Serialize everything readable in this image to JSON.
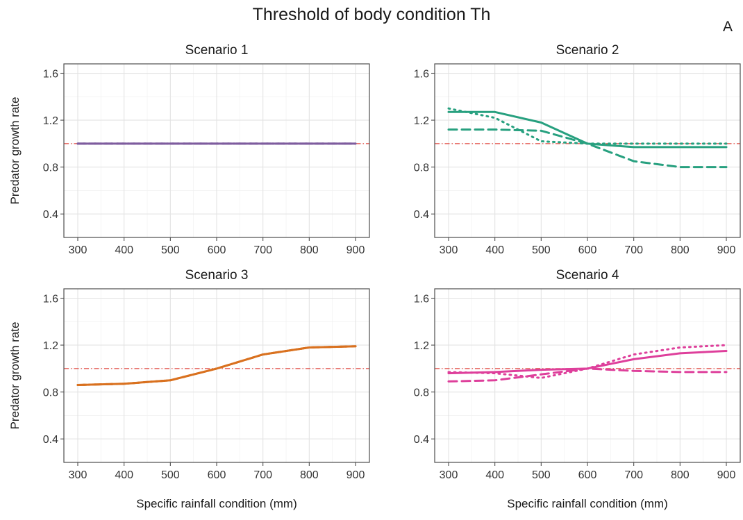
{
  "figure": {
    "title": "Threshold of body condition Th",
    "panel_tag": "A"
  },
  "chart_data": [
    {
      "type": "line",
      "title": "Scenario 1",
      "xlabel": "",
      "ylabel": "Predator growth rate",
      "xlim": [
        270,
        930
      ],
      "ylim": [
        0.2,
        1.68
      ],
      "xticks": [
        300,
        400,
        500,
        600,
        700,
        800,
        900
      ],
      "yticks": [
        0.4,
        0.8,
        1.2,
        1.6
      ],
      "reference_line": {
        "y": 1.0,
        "color": "#e0463e",
        "style": "dotdash"
      },
      "grid": true,
      "x": [
        300,
        400,
        500,
        600,
        700,
        800,
        900
      ],
      "series": [
        {
          "values": [
            1.0,
            1.0,
            1.0,
            1.0,
            1.0,
            1.0,
            1.0
          ],
          "color": "#7e5c9e",
          "style": "solid"
        },
        {
          "values": [
            1.0,
            1.0,
            1.0,
            1.0,
            1.0,
            1.0,
            1.0
          ],
          "color": "#7e5c9e",
          "style": "dashed"
        },
        {
          "values": [
            1.0,
            1.0,
            1.0,
            1.0,
            1.0,
            1.0,
            1.0
          ],
          "color": "#7e5c9e",
          "style": "dotted"
        }
      ]
    },
    {
      "type": "line",
      "title": "Scenario 2",
      "xlabel": "",
      "ylabel": "",
      "xlim": [
        270,
        930
      ],
      "ylim": [
        0.2,
        1.68
      ],
      "xticks": [
        300,
        400,
        500,
        600,
        700,
        800,
        900
      ],
      "yticks": [
        0.4,
        0.8,
        1.2,
        1.6
      ],
      "reference_line": {
        "y": 1.0,
        "color": "#e0463e",
        "style": "dotdash"
      },
      "grid": true,
      "x": [
        300,
        400,
        500,
        600,
        700,
        800,
        900
      ],
      "series": [
        {
          "values": [
            1.27,
            1.27,
            1.18,
            1.0,
            0.97,
            0.97,
            0.97
          ],
          "color": "#27a07f",
          "style": "solid"
        },
        {
          "values": [
            1.12,
            1.12,
            1.11,
            1.0,
            0.85,
            0.8,
            0.8
          ],
          "color": "#27a07f",
          "style": "dashed"
        },
        {
          "values": [
            1.3,
            1.22,
            1.02,
            1.0,
            1.0,
            1.0,
            1.0
          ],
          "color": "#27a07f",
          "style": "dotted"
        }
      ]
    },
    {
      "type": "line",
      "title": "Scenario 3",
      "xlabel": "Specific rainfall condition (mm)",
      "ylabel": "Predator growth rate",
      "xlim": [
        270,
        930
      ],
      "ylim": [
        0.2,
        1.68
      ],
      "xticks": [
        300,
        400,
        500,
        600,
        700,
        800,
        900
      ],
      "yticks": [
        0.4,
        0.8,
        1.2,
        1.6
      ],
      "reference_line": {
        "y": 1.0,
        "color": "#e0463e",
        "style": "dotdash"
      },
      "grid": true,
      "x": [
        300,
        400,
        500,
        600,
        700,
        800,
        900
      ],
      "series": [
        {
          "values": [
            0.86,
            0.87,
            0.9,
            1.0,
            1.12,
            1.18,
            1.19
          ],
          "color": "#d9711f",
          "style": "solid"
        },
        {
          "values": [
            0.86,
            0.87,
            0.9,
            1.0,
            1.12,
            1.18,
            1.19
          ],
          "color": "#d9711f",
          "style": "dashed"
        },
        {
          "values": [
            0.86,
            0.87,
            0.9,
            1.0,
            1.12,
            1.18,
            1.19
          ],
          "color": "#d9711f",
          "style": "dotted"
        }
      ]
    },
    {
      "type": "line",
      "title": "Scenario 4",
      "xlabel": "Specific rainfall condition (mm)",
      "ylabel": "",
      "xlim": [
        270,
        930
      ],
      "ylim": [
        0.2,
        1.68
      ],
      "xticks": [
        300,
        400,
        500,
        600,
        700,
        800,
        900
      ],
      "yticks": [
        0.4,
        0.8,
        1.2,
        1.6
      ],
      "reference_line": {
        "y": 1.0,
        "color": "#e0463e",
        "style": "dotdash"
      },
      "grid": true,
      "x": [
        300,
        400,
        500,
        600,
        700,
        800,
        900
      ],
      "series": [
        {
          "values": [
            0.96,
            0.97,
            0.99,
            1.0,
            1.08,
            1.13,
            1.15
          ],
          "color": "#de3f9b",
          "style": "solid"
        },
        {
          "values": [
            0.89,
            0.9,
            0.95,
            1.0,
            0.98,
            0.97,
            0.97
          ],
          "color": "#de3f9b",
          "style": "dashed"
        },
        {
          "values": [
            0.97,
            0.96,
            0.92,
            1.0,
            1.12,
            1.18,
            1.2
          ],
          "color": "#de3f9b",
          "style": "dotted"
        }
      ]
    }
  ]
}
